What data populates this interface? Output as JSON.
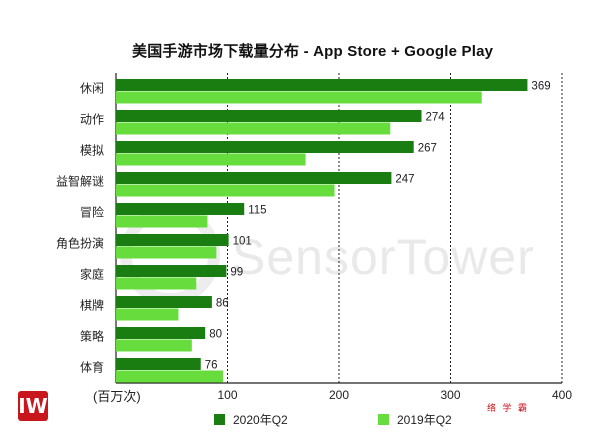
{
  "chart_data": {
    "type": "bar",
    "orientation": "horizontal",
    "title": "美国手游市场下载量分布 - App Store + Google Play",
    "categories": [
      "休闲",
      "动作",
      "模拟",
      "益智解谜",
      "冒险",
      "角色扮演",
      "家庭",
      "棋牌",
      "策略",
      "体育"
    ],
    "series": [
      {
        "name": "2020年Q2",
        "color": "#1a7d12",
        "values": [
          369,
          274,
          267,
          247,
          115,
          101,
          99,
          86,
          80,
          76
        ]
      },
      {
        "name": "2019年Q2",
        "color": "#66dd3c",
        "values": [
          328,
          246,
          170,
          196,
          82,
          90,
          72,
          56,
          68,
          96
        ]
      }
    ],
    "data_labels": [
      369,
      274,
      267,
      247,
      115,
      101,
      99,
      86,
      80,
      76
    ],
    "x_ticks": [
      100,
      200,
      300,
      400
    ],
    "xlim": [
      0,
      400
    ],
    "xlabel": "(百万次)",
    "legend_position": "bottom",
    "grid": "vertical-dashed"
  },
  "watermark": "SensorTower",
  "logos": {
    "left": "IW",
    "right": "络 学 霸"
  }
}
